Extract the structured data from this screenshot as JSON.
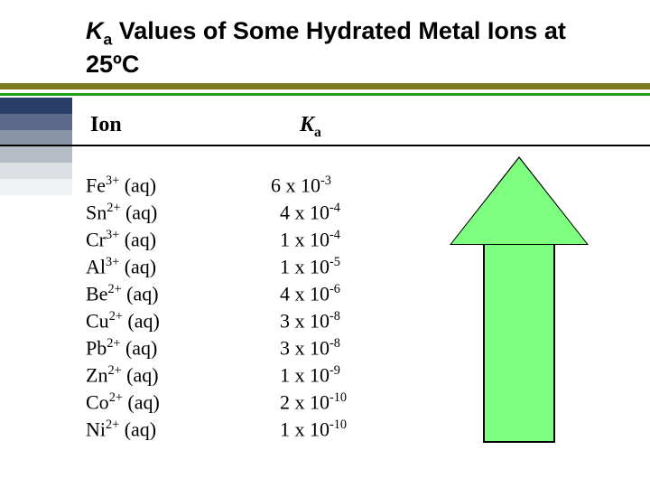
{
  "title": {
    "line1_prefix_italic": "K",
    "line1_sub": "a",
    "line1_rest": " Values of Some Hydrated Metal Ions at",
    "line2": "25ºC"
  },
  "headers": {
    "ion": "Ion",
    "ka_italic": "K",
    "ka_sub": "a"
  },
  "rows": [
    {
      "el": "Fe",
      "charge": "3+",
      "phase": " (aq)",
      "coef": "6",
      "exp": "-3",
      "indent": 0
    },
    {
      "el": "Sn",
      "charge": "2+",
      "phase": " (aq)",
      "coef": "4",
      "exp": "-4",
      "indent": 10
    },
    {
      "el": "Cr",
      "charge": "3+",
      "phase": " (aq)",
      "coef": "1",
      "exp": "-4",
      "indent": 10
    },
    {
      "el": "Al",
      "charge": "3+",
      "phase": " (aq)",
      "coef": "1",
      "exp": "-5",
      "indent": 10
    },
    {
      "el": "Be",
      "charge": "2+",
      "phase": " (aq)",
      "coef": "4",
      "exp": "-6",
      "indent": 10
    },
    {
      "el": "Cu",
      "charge": "2+",
      "phase": " (aq)",
      "coef": "3",
      "exp": "-8",
      "indent": 10
    },
    {
      "el": "Pb",
      "charge": "2+",
      "phase": " (aq)",
      "coef": "3",
      "exp": "-8",
      "indent": 10
    },
    {
      "el": "Zn",
      "charge": "2+",
      "phase": " (aq)",
      "coef": "1",
      "exp": "-9",
      "indent": 10
    },
    {
      "el": "Co",
      "charge": "2+",
      "phase": " (aq)",
      "coef": "2",
      "exp": "-10",
      "indent": 10
    },
    {
      "el": "Ni",
      "charge": "2+",
      "phase": " (aq)",
      "coef": "1",
      "exp": "-10",
      "indent": 10
    }
  ],
  "arrow": {
    "fill": "#7fff7f",
    "stroke": "#000000",
    "head_height": 95,
    "shaft_height": 220
  },
  "colors": {
    "rule_olive": "#7a7a1f",
    "rule_green": "#1fa01f"
  }
}
